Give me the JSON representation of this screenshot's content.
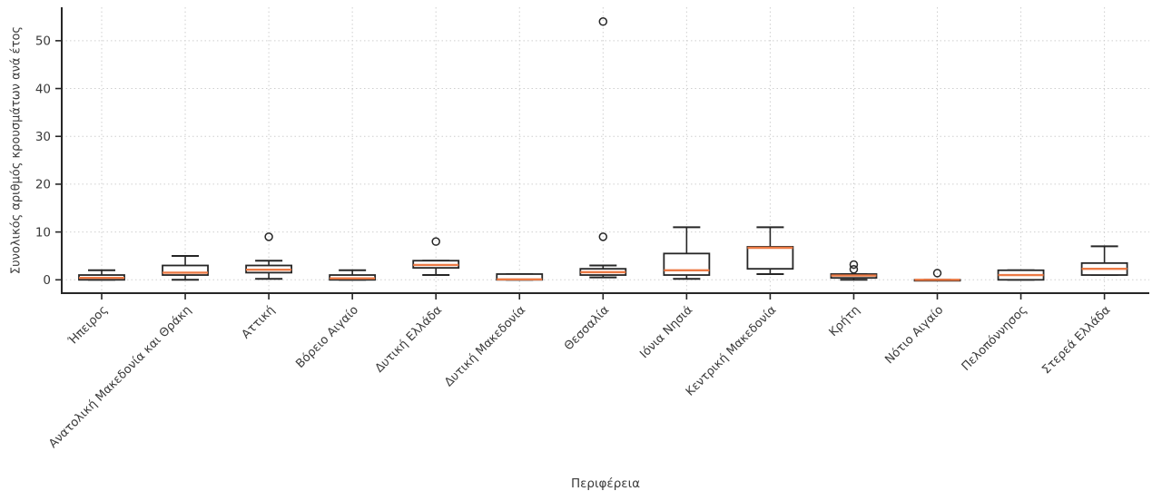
{
  "chart_data": {
    "type": "boxplot",
    "title": "",
    "xlabel": "Περιφέρεια",
    "ylabel": "Συνολικός αριθμός κρουσμάτων ανά έτος",
    "categories": [
      "Ήπειρος",
      "Ανατολική Μακεδονία και Θράκη",
      "Αττική",
      "Βόρειο Αιγαίο",
      "Δυτική Ελλάδα",
      "Δυτική Μακεδονία",
      "Θεσσαλία",
      "Ιόνια Νησιά",
      "Κεντρική Μακεδονία",
      "Κρήτη",
      "Νότιο Αιγαίο",
      "Πελοπόννησος",
      "Στερεά Ελλάδα"
    ],
    "yticks": [
      0,
      10,
      20,
      30,
      40,
      50
    ],
    "ylim": [
      -2.8,
      57
    ],
    "grid": "dotted, both axes",
    "legend": "none",
    "colors": {
      "median": "#ec7a45",
      "box_edge": "#262626",
      "grid": "#cfcfcf",
      "text": "#3a3a3a",
      "background": "#ffffff"
    },
    "boxes": [
      {
        "label": "Ήπειρος",
        "whislo": 0,
        "q1": 0,
        "med": 0.4,
        "q3": 1,
        "whishi": 2,
        "fliers": []
      },
      {
        "label": "Ανατολική Μακεδονία και Θράκη",
        "whislo": 0,
        "q1": 1,
        "med": 1.5,
        "q3": 3,
        "whishi": 5,
        "fliers": []
      },
      {
        "label": "Αττική",
        "whislo": 0.2,
        "q1": 1.5,
        "med": 2.1,
        "q3": 3,
        "whishi": 4,
        "fliers": [
          9
        ]
      },
      {
        "label": "Βόρειο Αιγαίο",
        "whislo": 0,
        "q1": 0,
        "med": 0.3,
        "q3": 1,
        "whishi": 2,
        "fliers": []
      },
      {
        "label": "Δυτική Ελλάδα",
        "whislo": 1,
        "q1": 2.5,
        "med": 3.1,
        "q3": 4,
        "whishi": 4,
        "fliers": [
          8
        ]
      },
      {
        "label": "Δυτική Μακεδονία",
        "whislo": 0,
        "q1": 0,
        "med": 0.1,
        "q3": 1.2,
        "whishi": 1.2,
        "fliers": []
      },
      {
        "label": "Θεσσαλία",
        "whislo": 0.5,
        "q1": 1,
        "med": 1.6,
        "q3": 2.3,
        "whishi": 3,
        "fliers": [
          9,
          54
        ]
      },
      {
        "label": "Ιόνια Νησιά",
        "whislo": 0.2,
        "q1": 1,
        "med": 2,
        "q3": 5.5,
        "whishi": 11,
        "fliers": []
      },
      {
        "label": "Κεντρική Μακεδονία",
        "whislo": 1.2,
        "q1": 2.3,
        "med": 6.7,
        "q3": 6.9,
        "whishi": 11,
        "fliers": []
      },
      {
        "label": "Κρήτη",
        "whislo": 0,
        "q1": 0.4,
        "med": 0.9,
        "q3": 1.2,
        "whishi": 1.2,
        "fliers": [
          2.2,
          3.2
        ]
      },
      {
        "label": "Νότιο Αιγαίο",
        "whislo": 0,
        "q1": 0,
        "med": 0,
        "q3": 0,
        "whishi": 0,
        "fliers": [
          1.4
        ]
      },
      {
        "label": "Πελοπόννησος",
        "whislo": 0,
        "q1": 0,
        "med": 1,
        "q3": 2,
        "whishi": 2,
        "fliers": []
      },
      {
        "label": "Στερεά Ελλάδα",
        "whislo": 1,
        "q1": 1,
        "med": 2.3,
        "q3": 3.5,
        "whishi": 7,
        "fliers": []
      }
    ]
  }
}
